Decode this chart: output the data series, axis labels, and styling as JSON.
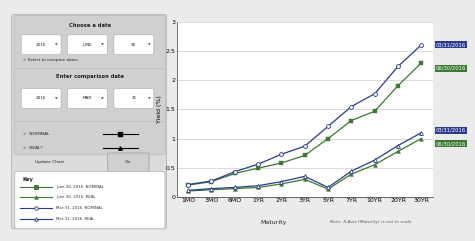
{
  "x_labels": [
    "1MO",
    "3MO",
    "6MO",
    "1YR",
    "2YR",
    "3YR",
    "5YR",
    "7YR",
    "10YR",
    "20YR",
    "30YR"
  ],
  "jun30_nominal": [
    0.2,
    0.26,
    0.4,
    0.49,
    0.58,
    0.71,
    1.0,
    1.31,
    1.47,
    1.91,
    2.3
  ],
  "jun30_real": [
    0.1,
    0.12,
    0.14,
    0.16,
    0.22,
    0.3,
    0.13,
    0.39,
    0.55,
    0.78,
    1.0
  ],
  "mar31_nominal": [
    0.21,
    0.27,
    0.43,
    0.56,
    0.73,
    0.87,
    1.21,
    1.55,
    1.77,
    2.24,
    2.61
  ],
  "mar31_real": [
    0.11,
    0.14,
    0.16,
    0.19,
    0.26,
    0.35,
    0.16,
    0.44,
    0.63,
    0.88,
    1.1
  ],
  "jun30_nominal_color": "#3a7a32",
  "jun30_real_color": "#3a7a32",
  "mar31_nominal_color": "#2b3a8c",
  "mar31_real_color": "#2b3a8c",
  "ylabel": "Yield (%)",
  "xlabel": "Maturity",
  "xlabel_note": "Note: X-Axis (Maturity) is not to scale",
  "ylim_min": 0.0,
  "ylim_max": 3.0,
  "yticks": [
    0.0,
    0.5,
    1.0,
    1.5,
    2.0,
    2.5,
    3.0
  ],
  "label_jun30_nominal": "06/30/2016",
  "label_mar31_nominal": "03/31/2016",
  "label_jun30_real": "06/30/2016",
  "label_mar31_real": "03/31/2016",
  "bg_color": "#ebebeb",
  "plot_bg": "#ffffff",
  "left_panel_bg": "#dcdcdc",
  "ctrl_box_bg": "#d0d0d0"
}
